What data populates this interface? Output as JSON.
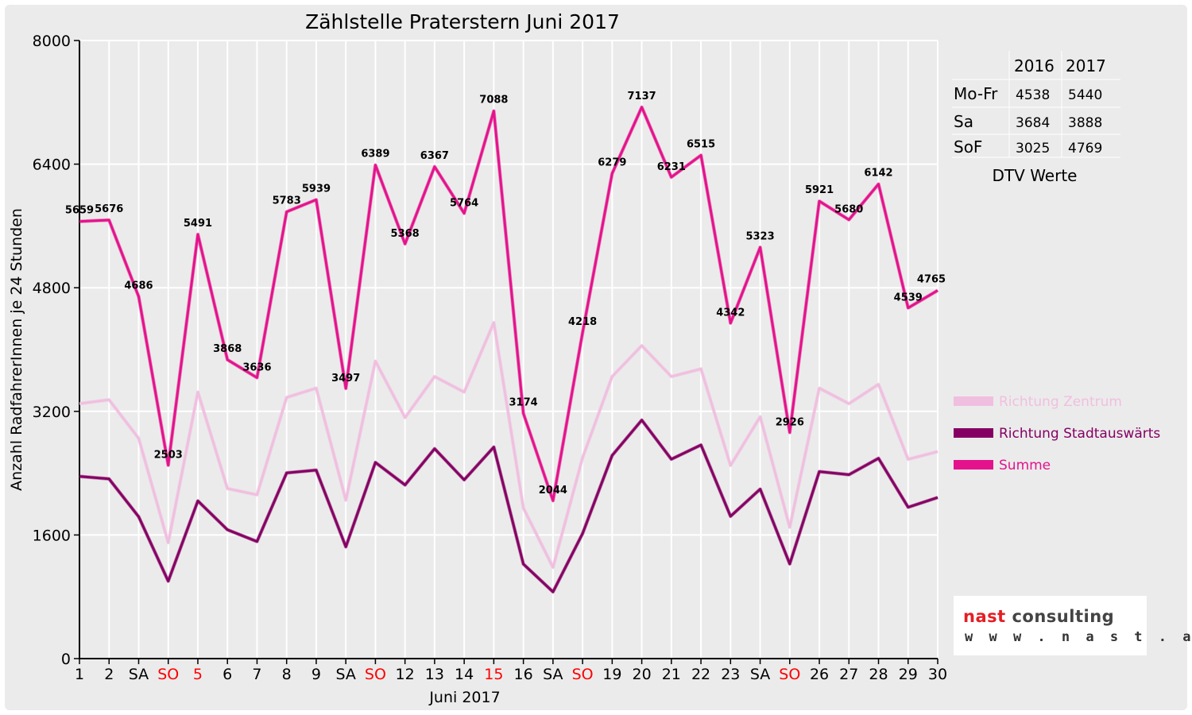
{
  "chart_data": {
    "type": "line",
    "title": "Zählstelle Praterstern Juni 2017",
    "xlabel": "Juni 2017",
    "ylabel": "Anzahl RadfahrerInnen je 24 Stunden",
    "ylim": [
      0,
      8000
    ],
    "yticks": [
      0,
      1600,
      3200,
      4800,
      6400,
      8000
    ],
    "grid": true,
    "legend_position": "right",
    "categories": [
      "1",
      "2",
      "SA",
      "SO",
      "5",
      "6",
      "7",
      "8",
      "9",
      "SA",
      "SO",
      "12",
      "13",
      "14",
      "15",
      "16",
      "SA",
      "SO",
      "19",
      "20",
      "21",
      "22",
      "23",
      "SA",
      "SO",
      "26",
      "27",
      "28",
      "29",
      "30"
    ],
    "highlighted_categories": [
      3,
      4,
      10,
      14,
      17,
      24
    ],
    "series": [
      {
        "name": "Richtung Zentrum",
        "color": "#f0bfdf",
        "values": [
          3300,
          3350,
          2850,
          1500,
          3450,
          2200,
          2120,
          3380,
          3500,
          2050,
          3850,
          3120,
          3650,
          3450,
          4350,
          1950,
          1180,
          2600,
          3650,
          4050,
          3650,
          3750,
          2500,
          3130,
          1700,
          3500,
          3300,
          3550,
          2580,
          2680
        ]
      },
      {
        "name": "Richtung Stadtauswärts",
        "color": "#850063",
        "values": [
          2359,
          2326,
          1836,
          1003,
          2041,
          1668,
          1516,
          2403,
          2439,
          1447,
          2539,
          2248,
          2717,
          2314,
          2738,
          1224,
          864,
          1618,
          2629,
          3087,
          2581,
          2765,
          1842,
          2193,
          1226,
          2421,
          2380,
          2592,
          1959,
          2085
        ]
      },
      {
        "name": "Summe",
        "color": "#e4138c",
        "values": [
          5659,
          5676,
          4686,
          2503,
          5491,
          3868,
          3636,
          5783,
          5939,
          3497,
          6389,
          5368,
          6367,
          5764,
          7088,
          3174,
          2044,
          4218,
          6279,
          7137,
          6231,
          6515,
          4342,
          5323,
          2926,
          5921,
          5680,
          6142,
          4539,
          4765
        ],
        "data_labels": [
          "5659",
          "5676",
          "4686",
          "2503",
          "5491",
          "3868",
          "3636",
          "5783",
          "5939",
          "3497",
          "6389",
          "5368",
          "6367",
          "5764",
          "7088",
          "3174",
          "2044",
          "4218",
          "6279",
          "7137",
          "6231",
          "6515",
          "4342",
          "5323",
          "2926",
          "5921",
          "5680",
          "6142",
          "4539",
          "4765"
        ]
      }
    ],
    "colors": {
      "weekend_label": "#ff0000",
      "grid": "#ffffff",
      "axis": "#000000"
    }
  },
  "dtv_table": {
    "caption": "DTV Werte",
    "columns": [
      "",
      "2016",
      "2017"
    ],
    "rows": [
      {
        "label": "Mo-Fr",
        "v2016": "4538",
        "v2017": "5440"
      },
      {
        "label": "Sa",
        "v2016": "3684",
        "v2017": "3888"
      },
      {
        "label": "SoF",
        "v2016": "3025",
        "v2017": "4769"
      }
    ]
  },
  "logo": {
    "brand_red": "nast",
    "brand_dark": "consulting",
    "url": "w w w . n a s t . a t",
    "colors": {
      "red": "#e31e24",
      "dark": "#444444"
    }
  }
}
